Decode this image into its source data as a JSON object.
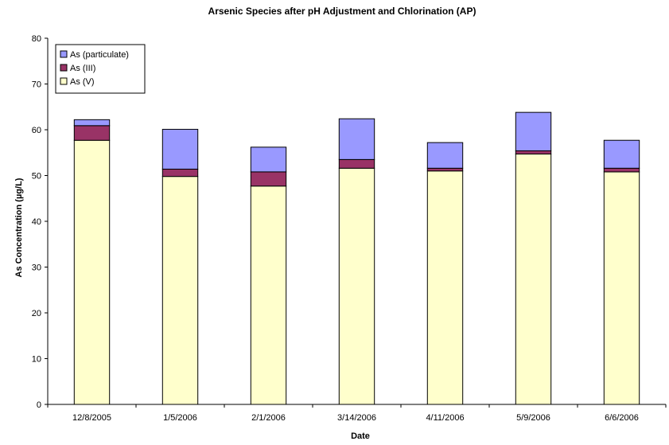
{
  "chart_data": {
    "type": "bar",
    "stacked": true,
    "title": "Arsenic Species after pH Adjustment and Chlorination (AP)",
    "xlabel": "Date",
    "ylabel": "As Concentration (µg/L)",
    "ylim": [
      0,
      80
    ],
    "yticks": [
      0,
      10,
      20,
      30,
      40,
      50,
      60,
      70,
      80
    ],
    "grid": false,
    "legend_position": "top-left",
    "categories": [
      "12/8/2005",
      "1/5/2006",
      "2/1/2006",
      "3/14/2006",
      "4/11/2006",
      "5/9/2006",
      "6/6/2006"
    ],
    "series": [
      {
        "name": "As (V)",
        "color": "#ffffcc",
        "values": [
          57.7,
          49.8,
          47.7,
          51.6,
          51.0,
          54.7,
          50.8
        ]
      },
      {
        "name": "As (III)",
        "color": "#993366",
        "values": [
          3.2,
          1.6,
          3.1,
          1.9,
          0.6,
          0.7,
          0.8
        ]
      },
      {
        "name": "As (particulate)",
        "color": "#9999ff",
        "values": [
          1.3,
          8.7,
          5.4,
          8.9,
          5.6,
          8.4,
          6.1
        ]
      }
    ],
    "legend_order": [
      "As (particulate)",
      "As (III)",
      "As (V)"
    ]
  }
}
